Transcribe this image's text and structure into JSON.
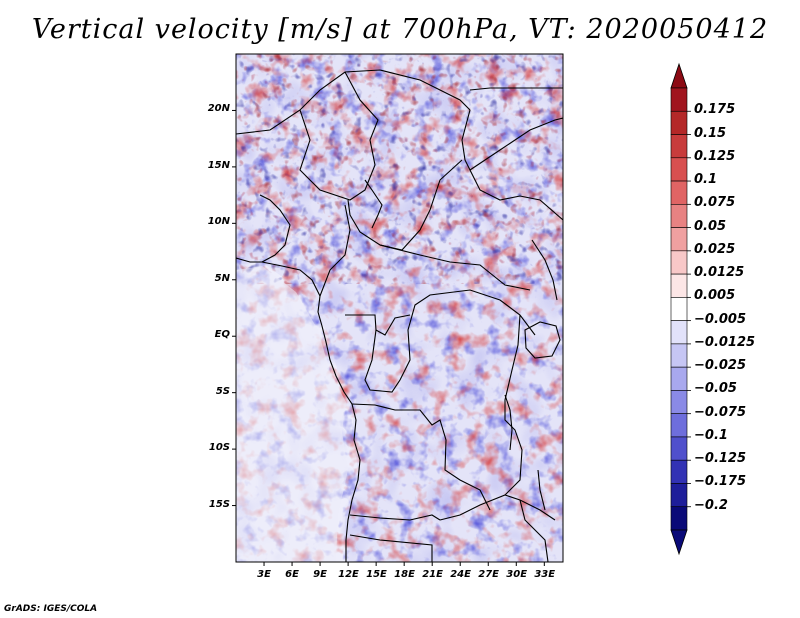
{
  "title": "Vertical velocity [m/s] at 700hPa, VT: 2020050412",
  "footer": "GrADS: IGES/COLA",
  "map": {
    "lon_range": [
      0,
      35
    ],
    "lat_range": [
      -20,
      25
    ],
    "lat_ticks": [
      {
        "label": "20N",
        "value": 20
      },
      {
        "label": "15N",
        "value": 15
      },
      {
        "label": "10N",
        "value": 10
      },
      {
        "label": "5N",
        "value": 5
      },
      {
        "label": "EQ",
        "value": 0
      },
      {
        "label": "5S",
        "value": -5
      },
      {
        "label": "10S",
        "value": -10
      },
      {
        "label": "15S",
        "value": -15
      }
    ],
    "lon_ticks": [
      {
        "label": "3E",
        "value": 3
      },
      {
        "label": "6E",
        "value": 6
      },
      {
        "label": "9E",
        "value": 9
      },
      {
        "label": "12E",
        "value": 12
      },
      {
        "label": "15E",
        "value": 15
      },
      {
        "label": "18E",
        "value": 18
      },
      {
        "label": "21E",
        "value": 21
      },
      {
        "label": "24E",
        "value": 24
      },
      {
        "label": "27E",
        "value": 27
      },
      {
        "label": "30E",
        "value": 30
      },
      {
        "label": "33E",
        "value": 33
      }
    ]
  },
  "colorbar": {
    "labels": [
      "0.175",
      "0.15",
      "0.125",
      "0.1",
      "0.075",
      "0.05",
      "0.025",
      "0.0125",
      "0.005",
      "−0.005",
      "−0.0125",
      "−0.025",
      "−0.05",
      "−0.075",
      "−0.1",
      "−0.125",
      "−0.175",
      "−0.2"
    ],
    "colors": [
      "#a0141e",
      "#b42828",
      "#c83c3c",
      "#d85050",
      "#e06464",
      "#e88282",
      "#f0a0a0",
      "#f8c8c8",
      "#fce6e6",
      "#ffffff",
      "#e2e2fa",
      "#c6c6f4",
      "#a8a8ee",
      "#8a8ae6",
      "#6e6edc",
      "#5050cc",
      "#3232b4",
      "#1e1e9a",
      "#0a0a78"
    ],
    "over_color": "#8c0a14",
    "under_color": "#0a0a78"
  }
}
